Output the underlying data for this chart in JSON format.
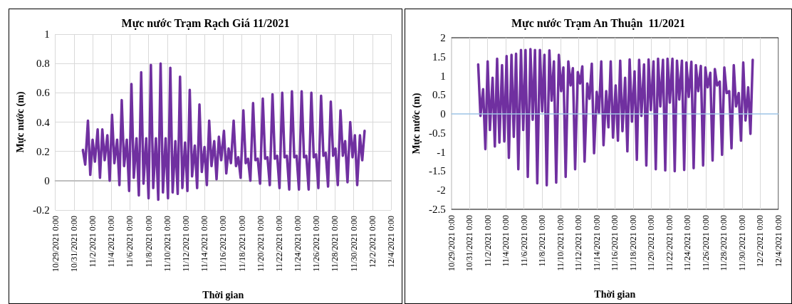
{
  "chart_data": [
    {
      "type": "line",
      "title": "Mực nước Trạm Rạch Giá 11/2021",
      "xlabel": "Thời gian",
      "ylabel": "Mực nước (m)",
      "grid": true,
      "marker": "none",
      "line_style": "solid",
      "xlim": [
        "2021-10-29",
        "2021-12-04"
      ],
      "xticks": [
        {
          "value": "2021-10-29",
          "label": "10/29/2021 0:00"
        },
        {
          "value": "2021-10-31",
          "label": "10/31/2021 0:00"
        },
        {
          "value": "2021-11-02",
          "label": "11/2/2021 0:00"
        },
        {
          "value": "2021-11-04",
          "label": "11/4/2021 0:00"
        },
        {
          "value": "2021-11-06",
          "label": "11/6/2021 0:00"
        },
        {
          "value": "2021-11-08",
          "label": "11/8/2021 0:00"
        },
        {
          "value": "2021-11-10",
          "label": "11/10/2021 0:00"
        },
        {
          "value": "2021-11-12",
          "label": "11/12/2021 0:00"
        },
        {
          "value": "2021-11-14",
          "label": "11/14/2021 0:00"
        },
        {
          "value": "2021-11-16",
          "label": "11/16/2021 0:00"
        },
        {
          "value": "2021-11-18",
          "label": "11/18/2021 0:00"
        },
        {
          "value": "2021-11-20",
          "label": "11/20/2021 0:00"
        },
        {
          "value": "2021-11-22",
          "label": "11/22/2021 0:00"
        },
        {
          "value": "2021-11-24",
          "label": "11/24/2021 0:00"
        },
        {
          "value": "2021-11-26",
          "label": "11/26/2021 0:00"
        },
        {
          "value": "2021-11-28",
          "label": "11/28/2021 0:00"
        },
        {
          "value": "2021-11-30",
          "label": "11/30/2021 0:00"
        },
        {
          "value": "2021-12-02",
          "label": "12/2/2021 0:00"
        },
        {
          "value": "2021-12-04",
          "label": "12/4/2021 0:00"
        }
      ],
      "ylim": [
        -0.2,
        1
      ],
      "yticks": [
        -0.2,
        0,
        0.2,
        0.4,
        0.6,
        0.8,
        1
      ],
      "x": [
        "2021-10-31T23:00",
        "2021-11-01T05:00",
        "2021-11-01T12:00",
        "2021-11-01T18:00",
        "2021-11-02T00:00",
        "2021-11-02T06:00",
        "2021-11-02T13:00",
        "2021-11-02T19:00",
        "2021-11-03T01:00",
        "2021-11-03T07:00",
        "2021-11-03T14:00",
        "2021-11-03T20:00",
        "2021-11-04T02:00",
        "2021-11-04T08:00",
        "2021-11-04T15:00",
        "2021-11-04T21:00",
        "2021-11-05T03:00",
        "2021-11-05T09:00",
        "2021-11-05T16:00",
        "2021-11-05T22:00",
        "2021-11-06T04:00",
        "2021-11-06T10:00",
        "2021-11-06T17:00",
        "2021-11-06T23:00",
        "2021-11-07T05:00",
        "2021-11-07T11:00",
        "2021-11-07T18:00",
        "2021-11-08T00:00",
        "2021-11-08T06:00",
        "2021-11-08T12:00",
        "2021-11-08T19:00",
        "2021-11-09T01:00",
        "2021-11-09T07:00",
        "2021-11-09T13:00",
        "2021-11-09T20:00",
        "2021-11-10T02:00",
        "2021-11-10T08:00",
        "2021-11-10T14:00",
        "2021-11-10T21:00",
        "2021-11-11T03:00",
        "2021-11-11T09:00",
        "2021-11-11T15:00",
        "2021-11-11T22:00",
        "2021-11-12T04:00",
        "2021-11-12T10:00",
        "2021-11-12T16:00",
        "2021-11-12T23:00",
        "2021-11-13T05:00",
        "2021-11-13T11:00",
        "2021-11-13T17:00",
        "2021-11-14T00:00",
        "2021-11-14T06:00",
        "2021-11-14T12:00",
        "2021-11-14T18:00",
        "2021-11-15T01:00",
        "2021-11-15T07:00",
        "2021-11-15T13:00",
        "2021-11-15T19:00",
        "2021-11-16T02:00",
        "2021-11-16T08:00",
        "2021-11-16T14:00",
        "2021-11-16T20:00",
        "2021-11-17T03:00",
        "2021-11-17T09:00",
        "2021-11-17T15:00",
        "2021-11-17T21:00",
        "2021-11-18T04:00",
        "2021-11-18T10:00",
        "2021-11-18T16:00",
        "2021-11-18T22:00",
        "2021-11-19T05:00",
        "2021-11-19T11:00",
        "2021-11-19T17:00",
        "2021-11-19T23:00",
        "2021-11-20T06:00",
        "2021-11-20T12:00",
        "2021-11-20T18:00",
        "2021-11-21T00:00",
        "2021-11-21T07:00",
        "2021-11-21T13:00",
        "2021-11-21T19:00",
        "2021-11-22T01:00",
        "2021-11-22T08:00",
        "2021-11-22T14:00",
        "2021-11-22T20:00",
        "2021-11-23T02:00",
        "2021-11-23T09:00",
        "2021-11-23T15:00",
        "2021-11-23T21:00",
        "2021-11-24T03:00",
        "2021-11-24T10:00",
        "2021-11-24T16:00",
        "2021-11-24T22:00",
        "2021-11-25T04:00",
        "2021-11-25T11:00",
        "2021-11-25T17:00",
        "2021-11-25T23:00",
        "2021-11-26T05:00",
        "2021-11-26T12:00",
        "2021-11-26T18:00",
        "2021-11-27T00:00",
        "2021-11-27T06:00",
        "2021-11-27T13:00",
        "2021-11-27T19:00",
        "2021-11-28T01:00",
        "2021-11-28T07:00",
        "2021-11-28T14:00",
        "2021-11-28T20:00",
        "2021-11-29T02:00",
        "2021-11-29T08:00",
        "2021-11-29T15:00",
        "2021-11-29T21:00",
        "2021-11-30T03:00",
        "2021-11-30T09:00",
        "2021-11-30T16:00",
        "2021-11-30T22:00",
        "2021-12-01T04:00"
      ],
      "series": [
        {
          "color": "#7030a0",
          "values": [
            0.21,
            0.11,
            0.41,
            0.04,
            0.28,
            0.13,
            0.35,
            0.02,
            0.35,
            0.14,
            0.31,
            0.0,
            0.45,
            0.12,
            0.28,
            -0.03,
            0.55,
            0.1,
            0.28,
            -0.07,
            0.66,
            0.02,
            0.29,
            -0.1,
            0.74,
            -0.02,
            0.29,
            -0.12,
            0.79,
            -0.05,
            0.29,
            -0.13,
            0.8,
            -0.08,
            0.29,
            -0.12,
            0.77,
            -0.08,
            0.27,
            -0.09,
            0.71,
            -0.05,
            0.26,
            -0.07,
            0.62,
            0.03,
            0.24,
            -0.05,
            0.52,
            0.06,
            0.23,
            -0.03,
            0.41,
            0.1,
            0.27,
            0.01,
            0.3,
            0.14,
            0.34,
            0.05,
            0.22,
            0.12,
            0.41,
            0.1,
            0.16,
            0.02,
            0.48,
            0.12,
            0.15,
            0.0,
            0.53,
            0.14,
            0.15,
            -0.02,
            0.56,
            0.15,
            0.16,
            -0.03,
            0.59,
            0.15,
            0.17,
            -0.05,
            0.6,
            0.16,
            0.17,
            -0.06,
            0.61,
            0.16,
            0.17,
            -0.06,
            0.61,
            0.16,
            0.17,
            -0.06,
            0.6,
            0.16,
            0.18,
            -0.05,
            0.58,
            0.17,
            0.19,
            -0.04,
            0.54,
            0.17,
            0.22,
            -0.03,
            0.48,
            0.17,
            0.27,
            -0.01,
            0.4,
            0.16,
            0.31,
            -0.03,
            0.31,
            0.14,
            0.34
          ]
        }
      ]
    },
    {
      "type": "line",
      "title": "Mực nước Trạm An Thuận  11/2021",
      "xlabel": "Thời gian",
      "ylabel": "Mực nước (m)",
      "grid": "x",
      "marker": "none",
      "line_style": "solid",
      "ref_lines": [
        {
          "axis": "y",
          "value": 0,
          "color": "#9dc3e6"
        }
      ],
      "xlim": [
        "2021-10-29",
        "2021-12-04"
      ],
      "xticks": [
        {
          "value": "2021-10-29",
          "label": "10/29/2021 0:00"
        },
        {
          "value": "2021-10-31",
          "label": "10/31/2021 0:00"
        },
        {
          "value": "2021-11-02",
          "label": "11/2/2021 0:00"
        },
        {
          "value": "2021-11-04",
          "label": "11/4/2021 0:00"
        },
        {
          "value": "2021-11-06",
          "label": "11/6/2021 0:00"
        },
        {
          "value": "2021-11-08",
          "label": "11/8/2021 0:00"
        },
        {
          "value": "2021-11-10",
          "label": "11/10/2021 0:00"
        },
        {
          "value": "2021-11-12",
          "label": "11/12/2021 0:00"
        },
        {
          "value": "2021-11-14",
          "label": "11/14/2021 0:00"
        },
        {
          "value": "2021-11-16",
          "label": "11/16/2021 0:00"
        },
        {
          "value": "2021-11-18",
          "label": "11/18/2021 0:00"
        },
        {
          "value": "2021-11-20",
          "label": "11/20/2021 0:00"
        },
        {
          "value": "2021-11-22",
          "label": "11/22/2021 0:00"
        },
        {
          "value": "2021-11-24",
          "label": "11/24/2021 0:00"
        },
        {
          "value": "2021-11-26",
          "label": "11/26/2021 0:00"
        },
        {
          "value": "2021-11-28",
          "label": "11/28/2021 0:00"
        },
        {
          "value": "2021-11-30",
          "label": "11/30/2021 0:00"
        },
        {
          "value": "2021-12-02",
          "label": "12/2/2021 0:00"
        },
        {
          "value": "2021-12-04",
          "label": "12/4/2021 0:00"
        }
      ],
      "ylim": [
        -2.5,
        2
      ],
      "yticks": [
        -2.5,
        -2,
        -1.5,
        -1,
        -0.5,
        0,
        0.5,
        1,
        1.5,
        2
      ],
      "x": [
        "2021-10-31T23:00",
        "2021-11-01T05:00",
        "2021-11-01T12:00",
        "2021-11-01T18:00",
        "2021-11-02T00:00",
        "2021-11-02T06:00",
        "2021-11-02T13:00",
        "2021-11-02T19:00",
        "2021-11-03T01:00",
        "2021-11-03T07:00",
        "2021-11-03T14:00",
        "2021-11-03T20:00",
        "2021-11-04T02:00",
        "2021-11-04T08:00",
        "2021-11-04T15:00",
        "2021-11-04T21:00",
        "2021-11-05T03:00",
        "2021-11-05T09:00",
        "2021-11-05T16:00",
        "2021-11-05T22:00",
        "2021-11-06T04:00",
        "2021-11-06T10:00",
        "2021-11-06T17:00",
        "2021-11-06T23:00",
        "2021-11-07T05:00",
        "2021-11-07T11:00",
        "2021-11-07T18:00",
        "2021-11-08T00:00",
        "2021-11-08T06:00",
        "2021-11-08T12:00",
        "2021-11-08T19:00",
        "2021-11-09T01:00",
        "2021-11-09T07:00",
        "2021-11-09T13:00",
        "2021-11-09T20:00",
        "2021-11-10T02:00",
        "2021-11-10T08:00",
        "2021-11-10T14:00",
        "2021-11-10T21:00",
        "2021-11-11T03:00",
        "2021-11-11T09:00",
        "2021-11-11T15:00",
        "2021-11-11T22:00",
        "2021-11-12T04:00",
        "2021-11-12T10:00",
        "2021-11-12T16:00",
        "2021-11-12T23:00",
        "2021-11-13T05:00",
        "2021-11-13T11:00",
        "2021-11-13T17:00",
        "2021-11-14T00:00",
        "2021-11-14T06:00",
        "2021-11-14T12:00",
        "2021-11-14T18:00",
        "2021-11-15T01:00",
        "2021-11-15T07:00",
        "2021-11-15T13:00",
        "2021-11-15T19:00",
        "2021-11-16T02:00",
        "2021-11-16T08:00",
        "2021-11-16T14:00",
        "2021-11-16T20:00",
        "2021-11-17T03:00",
        "2021-11-17T09:00",
        "2021-11-17T15:00",
        "2021-11-17T21:00",
        "2021-11-18T04:00",
        "2021-11-18T10:00",
        "2021-11-18T16:00",
        "2021-11-18T22:00",
        "2021-11-19T05:00",
        "2021-11-19T11:00",
        "2021-11-19T17:00",
        "2021-11-19T23:00",
        "2021-11-20T06:00",
        "2021-11-20T12:00",
        "2021-11-20T18:00",
        "2021-11-21T00:00",
        "2021-11-21T07:00",
        "2021-11-21T13:00",
        "2021-11-21T19:00",
        "2021-11-22T01:00",
        "2021-11-22T08:00",
        "2021-11-22T14:00",
        "2021-11-22T20:00",
        "2021-11-23T02:00",
        "2021-11-23T09:00",
        "2021-11-23T15:00",
        "2021-11-23T21:00",
        "2021-11-24T03:00",
        "2021-11-24T10:00",
        "2021-11-24T16:00",
        "2021-11-24T22:00",
        "2021-11-25T04:00",
        "2021-11-25T11:00",
        "2021-11-25T17:00",
        "2021-11-25T23:00",
        "2021-11-26T05:00",
        "2021-11-26T12:00",
        "2021-11-26T18:00",
        "2021-11-27T00:00",
        "2021-11-27T06:00",
        "2021-11-27T13:00",
        "2021-11-27T19:00",
        "2021-11-28T01:00",
        "2021-11-28T07:00",
        "2021-11-28T14:00",
        "2021-11-28T20:00",
        "2021-11-29T02:00",
        "2021-11-29T08:00",
        "2021-11-29T15:00",
        "2021-11-29T21:00",
        "2021-11-30T03:00",
        "2021-11-30T09:00",
        "2021-11-30T16:00",
        "2021-11-30T22:00",
        "2021-12-01T04:00"
      ],
      "series": [
        {
          "color": "#7030a0",
          "values": [
            1.3,
            -0.05,
            0.65,
            -0.92,
            1.38,
            -0.42,
            0.95,
            -0.85,
            1.45,
            -0.75,
            1.28,
            -0.72,
            1.52,
            -1.15,
            1.55,
            -0.6,
            1.58,
            -1.45,
            1.68,
            -0.42,
            1.68,
            -1.65,
            1.7,
            -0.15,
            1.68,
            -1.82,
            1.68,
            0.07,
            1.55,
            -1.87,
            1.67,
            0.35,
            1.38,
            -1.8,
            1.55,
            0.6,
            1.22,
            -1.65,
            1.38,
            0.75,
            1.2,
            -1.45,
            1.1,
            0.8,
            1.25,
            -1.25,
            0.8,
            0.4,
            1.32,
            -1.03,
            0.58,
            0.02,
            1.38,
            -0.82,
            0.6,
            -0.35,
            1.38,
            -0.62,
            0.75,
            -0.7,
            1.4,
            -0.45,
            0.95,
            -0.98,
            1.43,
            -0.2,
            1.12,
            -1.2,
            1.42,
            -0.05,
            1.3,
            -1.35,
            1.43,
            0.1,
            1.38,
            -1.45,
            1.45,
            0.2,
            1.42,
            -1.48,
            1.45,
            0.3,
            1.45,
            -1.5,
            1.4,
            0.38,
            1.4,
            -1.47,
            1.35,
            0.45,
            1.37,
            -1.42,
            1.28,
            0.6,
            1.26,
            -1.35,
            1.22,
            0.7,
            1.08,
            -1.22,
            1.18,
            0.75,
            0.85,
            -1.07,
            1.22,
            0.55,
            0.6,
            -0.9,
            1.28,
            0.2,
            0.55,
            -0.7,
            1.35,
            -0.17,
            0.7,
            -0.52,
            1.42
          ]
        }
      ]
    }
  ]
}
